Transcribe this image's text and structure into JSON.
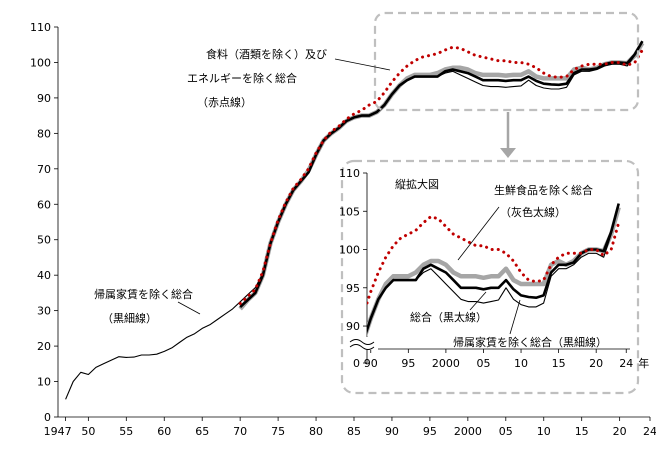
{
  "chart_data": [
    {
      "type": "line",
      "role": "main",
      "ylim": [
        0,
        110
      ],
      "yticks": [
        "0",
        "10",
        "20",
        "30",
        "40",
        "50",
        "60",
        "70",
        "80",
        "90",
        "100",
        "110"
      ],
      "xlim": [
        1946,
        2024
      ],
      "xticks": [
        {
          "x": 1947,
          "label": "1947"
        },
        {
          "x": 1950,
          "label": "50"
        },
        {
          "x": 1955,
          "label": "55"
        },
        {
          "x": 1960,
          "label": "60"
        },
        {
          "x": 1965,
          "label": "65"
        },
        {
          "x": 1970,
          "label": "70"
        },
        {
          "x": 1975,
          "label": "75"
        },
        {
          "x": 1980,
          "label": "80"
        },
        {
          "x": 1985,
          "label": "85"
        },
        {
          "x": 1990,
          "label": "90"
        },
        {
          "x": 1995,
          "label": "95"
        },
        {
          "x": 2000,
          "label": "2000"
        },
        {
          "x": 2005,
          "label": "05"
        },
        {
          "x": 2010,
          "label": "10"
        },
        {
          "x": 2015,
          "label": "15"
        },
        {
          "x": 2020,
          "label": "20"
        },
        {
          "x": 2024,
          "label": "24"
        }
      ],
      "x_unit": "年",
      "series": [
        {
          "name": "帰属家賃を除く総合（黒細線）",
          "style": "thin-black",
          "color": "#000000",
          "x": [
            1947,
            1948,
            1949,
            1950,
            1951,
            1952,
            1953,
            1954,
            1955,
            1956,
            1957,
            1958,
            1959,
            1960,
            1961,
            1962,
            1963,
            1964,
            1965,
            1966,
            1967,
            1968,
            1969,
            1970,
            1971,
            1972,
            1973,
            1974,
            1975,
            1976,
            1977,
            1978,
            1979,
            1980,
            1981,
            1982,
            1983,
            1984,
            1985,
            1986,
            1987,
            1988,
            1989,
            1990,
            1991,
            1992,
            1993,
            1994,
            1995,
            1996,
            1997,
            1998,
            1999,
            2000,
            2001,
            2002,
            2003,
            2004,
            2005,
            2006,
            2007,
            2008,
            2009,
            2010,
            2011,
            2012,
            2013,
            2014,
            2015,
            2016,
            2017,
            2018,
            2019,
            2020,
            2021,
            2022,
            2023
          ],
          "y": [
            5.0,
            10.0,
            12.6,
            12.0,
            14.0,
            15.0,
            16.0,
            17.0,
            16.8,
            16.9,
            17.5,
            17.5,
            17.7,
            18.5,
            19.5,
            21.0,
            22.5,
            23.5,
            25.0,
            26.0,
            27.5,
            29.0,
            30.5,
            32.5,
            34.5,
            36.5,
            40.5,
            49.0,
            55.0,
            60.0,
            64.0,
            66.5,
            69.0,
            74.0,
            78.0,
            80.0,
            81.5,
            83.5,
            84.5,
            85.0,
            85.0,
            86.0,
            88.0,
            91.0,
            93.5,
            95.0,
            96.0,
            96.0,
            96.0,
            96.0,
            97.0,
            97.5,
            96.5,
            95.5,
            94.5,
            93.5,
            93.2,
            93.2,
            93.0,
            93.2,
            93.4,
            95.0,
            93.5,
            92.8,
            92.5,
            92.5,
            93.0,
            96.5,
            97.5,
            97.5,
            98.0,
            99.0,
            99.5,
            99.5,
            99.0,
            102.0,
            106.0
          ]
        },
        {
          "name": "総合（黒太線）",
          "style": "thick-black",
          "color": "#000000",
          "x": [
            1970,
            1971,
            1972,
            1973,
            1974,
            1975,
            1976,
            1977,
            1978,
            1979,
            1980,
            1981,
            1982,
            1983,
            1984,
            1985,
            1986,
            1987,
            1988,
            1989,
            1990,
            1991,
            1992,
            1993,
            1994,
            1995,
            1996,
            1997,
            1998,
            1999,
            2000,
            2001,
            2002,
            2003,
            2004,
            2005,
            2006,
            2007,
            2008,
            2009,
            2010,
            2011,
            2012,
            2013,
            2014,
            2015,
            2016,
            2017,
            2018,
            2019,
            2020,
            2021,
            2022,
            2023
          ],
          "y": [
            31.0,
            33.0,
            35.0,
            40.0,
            49.0,
            55.0,
            60.0,
            64.0,
            66.5,
            69.0,
            74.0,
            78.0,
            80.0,
            81.5,
            83.5,
            84.5,
            85.0,
            85.0,
            86.0,
            88.0,
            91.0,
            93.5,
            95.0,
            96.0,
            96.0,
            96.0,
            96.0,
            97.5,
            98.0,
            97.5,
            97.0,
            96.0,
            95.0,
            95.0,
            95.0,
            94.8,
            95.0,
            95.0,
            96.0,
            94.8,
            94.0,
            93.8,
            93.7,
            94.0,
            97.0,
            98.0,
            98.0,
            98.3,
            99.5,
            100.0,
            100.0,
            99.8,
            102.3,
            106.0
          ]
        },
        {
          "name": "生鮮食品を除く総合（灰色太線）",
          "style": "thick-gray",
          "color": "#a6a6a6",
          "x": [
            1970,
            1971,
            1972,
            1973,
            1974,
            1975,
            1976,
            1977,
            1978,
            1979,
            1980,
            1981,
            1982,
            1983,
            1984,
            1985,
            1986,
            1987,
            1988,
            1989,
            1990,
            1991,
            1992,
            1993,
            1994,
            1995,
            1996,
            1997,
            1998,
            1999,
            2000,
            2001,
            2002,
            2003,
            2004,
            2005,
            2006,
            2007,
            2008,
            2009,
            2010,
            2011,
            2012,
            2013,
            2014,
            2015,
            2016,
            2017,
            2018,
            2019,
            2020,
            2021,
            2022,
            2023
          ],
          "y": [
            30.5,
            33.0,
            35.0,
            40.0,
            49.0,
            55.0,
            60.0,
            64.0,
            66.5,
            69.5,
            74.0,
            78.0,
            80.0,
            81.5,
            83.5,
            84.5,
            85.0,
            85.0,
            86.0,
            88.0,
            91.0,
            93.5,
            95.5,
            96.5,
            96.5,
            96.5,
            97.0,
            98.0,
            98.5,
            98.5,
            98.0,
            97.0,
            96.5,
            96.5,
            96.5,
            96.3,
            96.5,
            96.5,
            97.5,
            96.0,
            95.5,
            95.5,
            95.5,
            95.5,
            98.0,
            98.5,
            98.0,
            98.5,
            99.5,
            100.0,
            100.0,
            99.8,
            102.0,
            105.5
          ]
        },
        {
          "name": "食料（酒類を除く）及びエネルギーを除く総合（赤点線）",
          "style": "dotted-red",
          "color": "#c00000",
          "x": [
            1970,
            1971,
            1972,
            1973,
            1974,
            1975,
            1976,
            1977,
            1978,
            1979,
            1980,
            1981,
            1982,
            1983,
            1984,
            1985,
            1986,
            1987,
            1988,
            1989,
            1990,
            1991,
            1992,
            1993,
            1994,
            1995,
            1996,
            1997,
            1998,
            1999,
            2000,
            2001,
            2002,
            2003,
            2004,
            2005,
            2006,
            2007,
            2008,
            2009,
            2010,
            2011,
            2012,
            2013,
            2014,
            2015,
            2016,
            2017,
            2018,
            2019,
            2020,
            2021,
            2022,
            2023
          ],
          "y": [
            32.0,
            34.0,
            36.0,
            41.0,
            49.0,
            55.5,
            60.5,
            64.5,
            67.0,
            70.0,
            74.5,
            78.0,
            80.5,
            82.0,
            84.0,
            85.5,
            86.5,
            88.0,
            89.0,
            91.5,
            94.5,
            97.0,
            99.0,
            100.5,
            101.5,
            102.0,
            102.5,
            103.5,
            104.3,
            104.0,
            103.0,
            102.0,
            101.5,
            101.0,
            100.5,
            100.5,
            100.0,
            100.0,
            99.5,
            98.5,
            97.0,
            96.0,
            95.8,
            96.0,
            98.0,
            99.0,
            99.5,
            99.5,
            99.5,
            100.0,
            100.0,
            99.2,
            100.0,
            103.5
          ]
        }
      ]
    },
    {
      "type": "line",
      "role": "inset",
      "title": "縦拡大図",
      "ylim": [
        87,
        110
      ],
      "yticks": [
        "90",
        "95",
        "100",
        "105",
        "110"
      ],
      "y_zero_label": "0",
      "xlim": [
        1989.5,
        2024.5
      ],
      "xticks": [
        {
          "x": 1990,
          "label": "90"
        },
        {
          "x": 1995,
          "label": "95"
        },
        {
          "x": 2000,
          "label": "2000"
        },
        {
          "x": 2005,
          "label": "05"
        },
        {
          "x": 2010,
          "label": "10"
        },
        {
          "x": 2015,
          "label": "15"
        },
        {
          "x": 2020,
          "label": "20"
        },
        {
          "x": 2024,
          "label": "24"
        }
      ],
      "x_unit": "年",
      "y_axis_break": true
    }
  ],
  "annotations": {
    "red_label": [
      "食料（酒類を除く）及び",
      "エネルギーを除く総合",
      "（赤点線）"
    ],
    "black_thin_label": [
      "帰属家賃を除く総合",
      "（黒細線）"
    ],
    "inset_gray_label": [
      "生鮮食品を除く総合",
      "（灰色太線）"
    ],
    "inset_thick_label": "総合（黒太線）",
    "inset_thin_label": "帰属家賃を除く総合（黒細線）"
  },
  "colors": {
    "red": "#c00000",
    "gray": "#a6a6a6",
    "black": "#000000",
    "dashed_box": "#bfbfbf",
    "arrow": "#a6a6a6"
  }
}
